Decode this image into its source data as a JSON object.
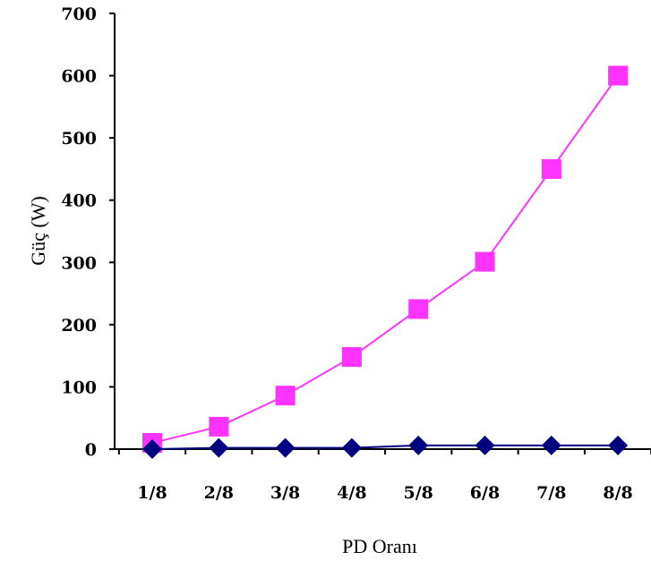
{
  "chart_data": {
    "type": "line",
    "title": "",
    "xlabel": "PD Oranı",
    "ylabel": "Güç (W)",
    "categories": [
      "1/8",
      "2/8",
      "3/8",
      "4/8",
      "5/8",
      "6/8",
      "7/8",
      "8/8"
    ],
    "ylim": [
      0,
      700
    ],
    "yticks": [
      0,
      100,
      200,
      300,
      400,
      500,
      600,
      700
    ],
    "grid": false,
    "legend": "none",
    "series": [
      {
        "values": [
          10,
          36,
          86,
          148,
          225,
          301,
          450,
          600
        ],
        "color": "#ff33ff",
        "marker": "square"
      },
      {
        "values": [
          0,
          2,
          2,
          2,
          6,
          6,
          6,
          6
        ],
        "color": "#000080",
        "marker": "diamond"
      }
    ]
  }
}
